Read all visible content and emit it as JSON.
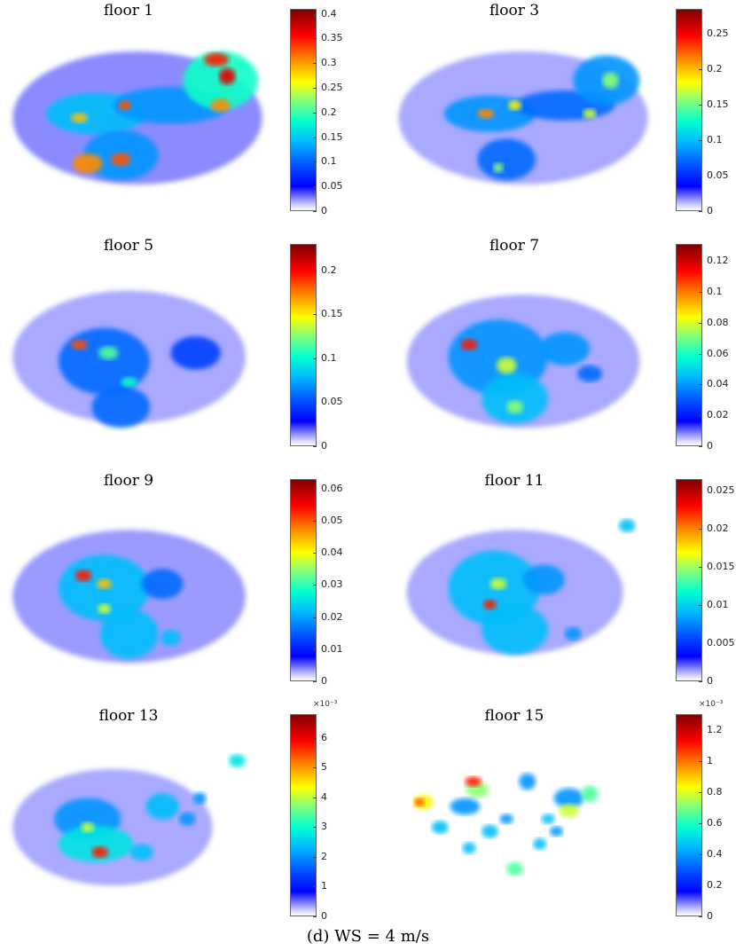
{
  "caption": "(d) WS = 4 m/s",
  "chart_data": [
    {
      "type": "heatmap",
      "title": "floor 1",
      "cbar": {
        "min": 0,
        "max": 0.41,
        "ticks": [
          "0",
          "0.05",
          "0.1",
          "0.15",
          "0.2",
          "0.25",
          "0.3",
          "0.35",
          "0.4"
        ],
        "tick_values": [
          0,
          0.05,
          0.1,
          0.15,
          0.2,
          0.25,
          0.3,
          0.35,
          0.4
        ],
        "exponent": ""
      }
    },
    {
      "type": "heatmap",
      "title": "floor 3",
      "cbar": {
        "min": 0,
        "max": 0.285,
        "ticks": [
          "0",
          "0.05",
          "0.1",
          "0.15",
          "0.2",
          "0.25"
        ],
        "tick_values": [
          0,
          0.05,
          0.1,
          0.15,
          0.2,
          0.25
        ],
        "exponent": ""
      }
    },
    {
      "type": "heatmap",
      "title": "floor 5",
      "cbar": {
        "min": 0,
        "max": 0.23,
        "ticks": [
          "0",
          "0.05",
          "0.1",
          "0.15",
          "0.2"
        ],
        "tick_values": [
          0,
          0.05,
          0.1,
          0.15,
          0.2
        ],
        "exponent": ""
      }
    },
    {
      "type": "heatmap",
      "title": "floor 7",
      "cbar": {
        "min": 0,
        "max": 0.131,
        "ticks": [
          "0",
          "0.02",
          "0.04",
          "0.06",
          "0.08",
          "0.1",
          "0.12"
        ],
        "tick_values": [
          0,
          0.02,
          0.04,
          0.06,
          0.08,
          0.1,
          0.12
        ],
        "exponent": ""
      }
    },
    {
      "type": "heatmap",
      "title": "floor 9",
      "cbar": {
        "min": 0,
        "max": 0.063,
        "ticks": [
          "0",
          "0.01",
          "0.02",
          "0.03",
          "0.04",
          "0.05",
          "0.06"
        ],
        "tick_values": [
          0,
          0.01,
          0.02,
          0.03,
          0.04,
          0.05,
          0.06
        ],
        "exponent": ""
      }
    },
    {
      "type": "heatmap",
      "title": "floor 11",
      "cbar": {
        "min": 0,
        "max": 0.0265,
        "ticks": [
          "0",
          "0.005",
          "0.01",
          "0.015",
          "0.02",
          "0.025"
        ],
        "tick_values": [
          0,
          0.005,
          0.01,
          0.015,
          0.02,
          0.025
        ],
        "exponent": ""
      }
    },
    {
      "type": "heatmap",
      "title": "floor 13",
      "cbar": {
        "min": 0,
        "max": 6.8,
        "ticks": [
          "0",
          "1",
          "2",
          "3",
          "4",
          "5",
          "6"
        ],
        "tick_values": [
          0,
          1,
          2,
          3,
          4,
          5,
          6
        ],
        "exponent": "×10⁻³"
      }
    },
    {
      "type": "heatmap",
      "title": "floor 15",
      "cbar": {
        "min": 0,
        "max": 1.3,
        "ticks": [
          "0",
          "0.2",
          "0.4",
          "0.6",
          "0.8",
          "1",
          "1.2"
        ],
        "tick_values": [
          0,
          0.2,
          0.4,
          0.6,
          0.8,
          1,
          1.2
        ],
        "exponent": "×10⁻³"
      }
    }
  ]
}
